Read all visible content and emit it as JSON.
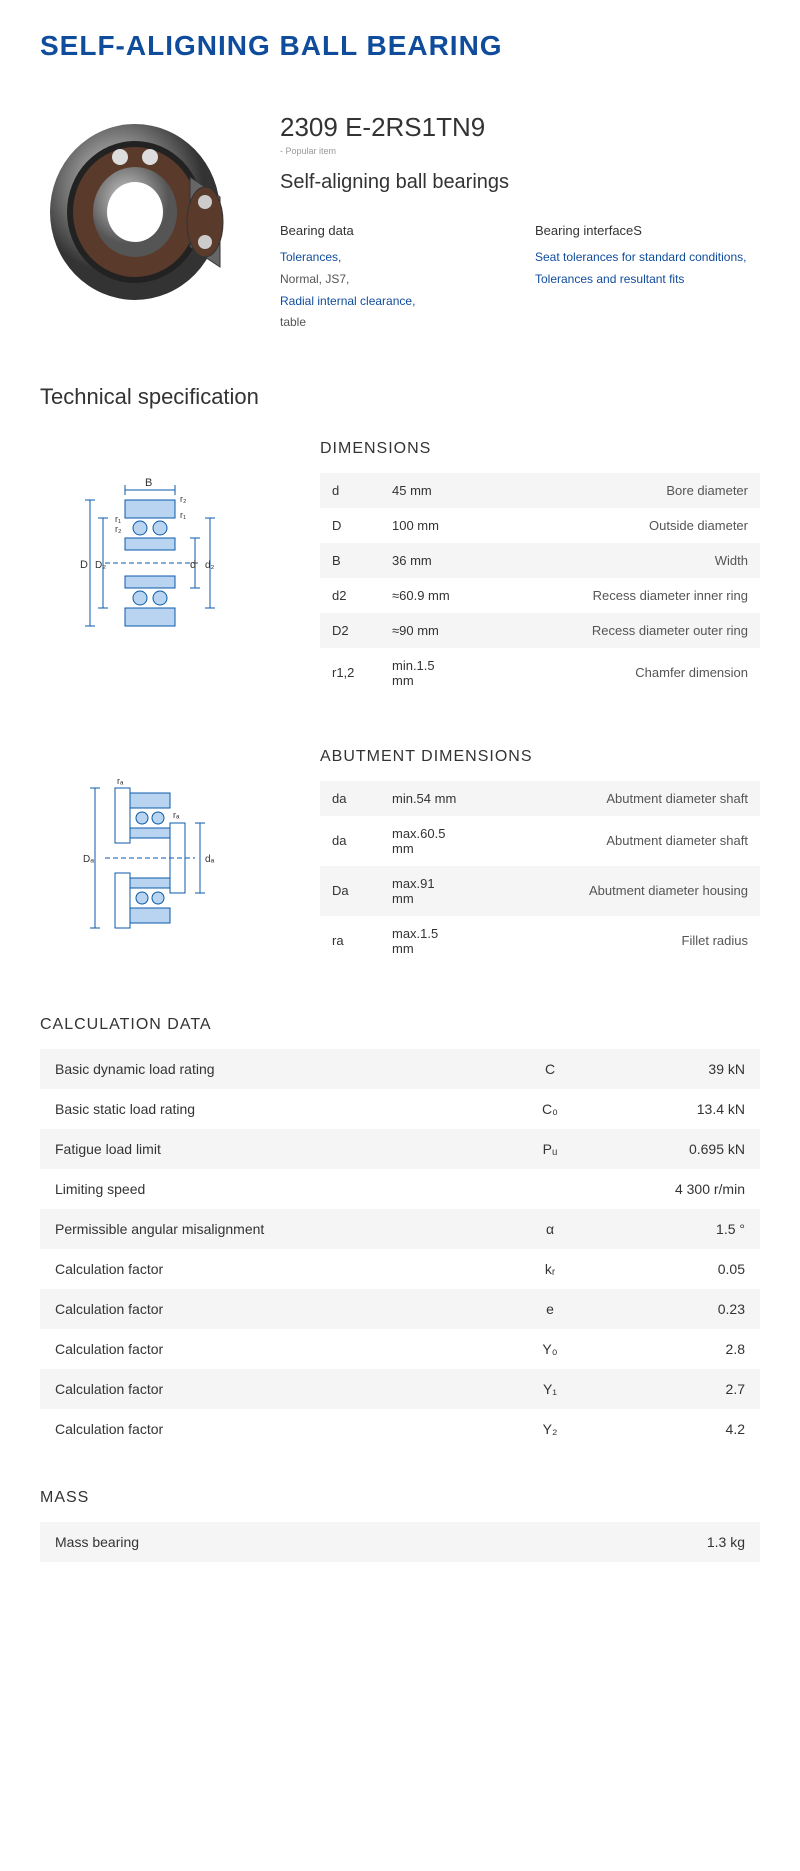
{
  "title": "SELF-ALIGNING BALL BEARING",
  "product": {
    "number": "2309 E-2RS1TN9",
    "popular": "- Popular item",
    "subtitle": "Self-aligning ball bearings",
    "col1": {
      "header": "Bearing data",
      "link1": "Tolerances,",
      "text1": "Normal, JS7,",
      "link2": "Radial internal clearance,",
      "text2": "table"
    },
    "col2": {
      "header": "Bearing interfaceS",
      "link1": "Seat tolerances for standard conditions,",
      "link2": "Tolerances and resultant fits"
    }
  },
  "tech_title": "Technical specification",
  "dimensions": {
    "title": "DIMENSIONS",
    "rows": [
      {
        "sym": "d",
        "val": "45  mm",
        "desc": "Bore diameter"
      },
      {
        "sym": "D",
        "val": "100  mm",
        "desc": "Outside diameter"
      },
      {
        "sym": "B",
        "val": "36  mm",
        "desc": "Width"
      },
      {
        "sym": "d2",
        "val": "≈60.9 mm",
        "desc": "Recess diameter inner ring"
      },
      {
        "sym": "D2",
        "val": "≈90 mm",
        "desc": "Recess diameter outer ring"
      },
      {
        "sym": "r1,2",
        "val": "min.1.5 mm",
        "desc": "Chamfer dimension"
      }
    ],
    "diagram_labels": {
      "B": "B",
      "r1": "r₁",
      "r2": "r₂",
      "D": "D",
      "D2": "D₂",
      "d": "d",
      "d2": "d₂"
    }
  },
  "abutment": {
    "title": "ABUTMENT DIMENSIONS",
    "rows": [
      {
        "sym": "da",
        "val": "min.54 mm",
        "desc": "Abutment diameter shaft"
      },
      {
        "sym": "da",
        "val": "max.60.5 mm",
        "desc": "Abutment diameter shaft"
      },
      {
        "sym": "Da",
        "val": "max.91 mm",
        "desc": "Abutment diameter housing"
      },
      {
        "sym": "ra",
        "val": "max.1.5 mm",
        "desc": "Fillet radius"
      }
    ],
    "diagram_labels": {
      "ra": "rₐ",
      "Da": "Dₐ",
      "da": "dₐ"
    }
  },
  "calculation": {
    "title": "CALCULATION DATA",
    "rows": [
      {
        "label": "Basic dynamic load rating",
        "sym": "C",
        "val": "39  kN"
      },
      {
        "label": "Basic static load rating",
        "sym": "C₀",
        "val": "13.4  kN"
      },
      {
        "label": "Fatigue load limit",
        "sym": "Pᵤ",
        "val": "0.695  kN"
      },
      {
        "label": "Limiting speed",
        "sym": "",
        "val": "4 300  r/min"
      },
      {
        "label": "Permissible angular misalignment",
        "sym": "α",
        "val": "1.5  °"
      },
      {
        "label": "Calculation factor",
        "sym": "kᵣ",
        "val": "0.05"
      },
      {
        "label": "Calculation factor",
        "sym": "e",
        "val": "0.23"
      },
      {
        "label": "Calculation factor",
        "sym": "Y₀",
        "val": "2.8"
      },
      {
        "label": "Calculation factor",
        "sym": "Y₁",
        "val": "2.7"
      },
      {
        "label": "Calculation factor",
        "sym": "Y₂",
        "val": "4.2"
      }
    ]
  },
  "mass": {
    "title": "MASS",
    "label": "Mass bearing",
    "value": "1.3  kg"
  },
  "colors": {
    "blue": "#0f4c9c",
    "gray_bg": "#f5f5f5",
    "text": "#333",
    "muted": "#555"
  }
}
